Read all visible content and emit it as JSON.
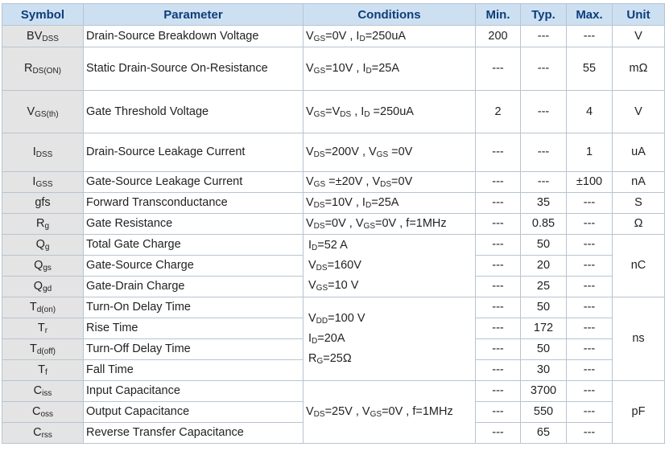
{
  "headers": [
    "Symbol",
    "Parameter",
    "Conditions",
    "Min.",
    "Typ.",
    "Max.",
    "Unit"
  ],
  "rows": [
    {
      "sym": {
        "m": "BV",
        "s": "DSS"
      },
      "param": "Drain-Source Breakdown Voltage",
      "min": "200",
      "typ": "---",
      "max": "---"
    },
    {
      "sym": {
        "m": "R",
        "s": "DS(ON)"
      },
      "param": "Static Drain-Source On-Resistance",
      "min": "---",
      "typ": "---",
      "max": "55"
    },
    {
      "sym": {
        "m": "V",
        "s": "GS(th)"
      },
      "param": "Gate Threshold Voltage",
      "min": "2",
      "typ": "---",
      "max": "4"
    },
    {
      "sym": {
        "m": "I",
        "s": "DSS"
      },
      "param": "Drain-Source Leakage Current",
      "min": "---",
      "typ": "---",
      "max": "1"
    },
    {
      "sym": {
        "m": "I",
        "s": "GSS"
      },
      "param": "Gate-Source Leakage Current",
      "min": "---",
      "typ": "---",
      "max": "±100"
    },
    {
      "sym": {
        "m": "gfs",
        "s": ""
      },
      "param": "Forward Transconductance",
      "min": "---",
      "typ": "35",
      "max": "---"
    },
    {
      "sym": {
        "m": "R",
        "s": "g"
      },
      "param": "Gate Resistance",
      "min": "---",
      "typ": "0.85",
      "max": "---"
    },
    {
      "sym": {
        "m": "Q",
        "s": "g"
      },
      "param": "Total Gate Charge",
      "min": "---",
      "typ": "50",
      "max": "---"
    },
    {
      "sym": {
        "m": "Q",
        "s": "gs"
      },
      "param": "Gate-Source Charge",
      "min": "---",
      "typ": "20",
      "max": "---"
    },
    {
      "sym": {
        "m": "Q",
        "s": "gd"
      },
      "param": "Gate-Drain Charge",
      "min": "---",
      "typ": "25",
      "max": "---"
    },
    {
      "sym": {
        "m": "T",
        "s": "d(on)"
      },
      "param": "Turn-On Delay Time",
      "min": "---",
      "typ": "50",
      "max": "---"
    },
    {
      "sym": {
        "m": "T",
        "s": "r"
      },
      "param": "Rise Time",
      "min": "---",
      "typ": "172",
      "max": "---"
    },
    {
      "sym": {
        "m": "T",
        "s": "d(off)"
      },
      "param": "Turn-Off Delay Time",
      "min": "---",
      "typ": "50",
      "max": "---"
    },
    {
      "sym": {
        "m": "T",
        "s": "f"
      },
      "param": "Fall Time",
      "min": "---",
      "typ": "30",
      "max": "---"
    },
    {
      "sym": {
        "m": "C",
        "s": "iss"
      },
      "param": "Input Capacitance",
      "min": "---",
      "typ": "3700",
      "max": "---"
    },
    {
      "sym": {
        "m": "C",
        "s": "oss"
      },
      "param": "Output Capacitance",
      "min": "---",
      "typ": "550",
      "max": "---"
    },
    {
      "sym": {
        "m": "C",
        "s": "rss"
      },
      "param": "Reverse Transfer Capacitance",
      "min": "---",
      "typ": "65",
      "max": "---"
    }
  ],
  "conditions": {
    "bvdss": [
      {
        "t": "V"
      },
      {
        "s": "GS"
      },
      {
        "t": "=0V , I"
      },
      {
        "s": "D"
      },
      {
        "t": "=250uA"
      }
    ],
    "rdson": [
      {
        "t": "V"
      },
      {
        "s": "GS"
      },
      {
        "t": "=10V , I"
      },
      {
        "s": "D"
      },
      {
        "t": "=25A"
      }
    ],
    "vgsth": [
      {
        "t": "V"
      },
      {
        "s": "GS"
      },
      {
        "t": "=V"
      },
      {
        "s": "DS"
      },
      {
        "t": " , I"
      },
      {
        "s": "D"
      },
      {
        "t": " =250uA"
      }
    ],
    "idss": [
      {
        "t": "V"
      },
      {
        "s": "DS"
      },
      {
        "t": "=200V , V"
      },
      {
        "s": "GS"
      },
      {
        "t": " =0V"
      }
    ],
    "igss": [
      {
        "t": "V"
      },
      {
        "s": "GS"
      },
      {
        "t": " =±20V , V"
      },
      {
        "s": "DS"
      },
      {
        "t": "=0V"
      }
    ],
    "gfs": [
      {
        "t": "V"
      },
      {
        "s": "DS"
      },
      {
        "t": "=10V , I"
      },
      {
        "s": "D"
      },
      {
        "t": "=25A"
      }
    ],
    "rg": [
      {
        "t": "V"
      },
      {
        "s": "DS"
      },
      {
        "t": "=0V , V"
      },
      {
        "s": "GS"
      },
      {
        "t": "=0V , f=1MHz"
      }
    ],
    "charge": [
      [
        {
          "t": "I"
        },
        {
          "s": "D"
        },
        {
          "t": "=52 A"
        }
      ],
      [
        {
          "t": "V"
        },
        {
          "s": "DS"
        },
        {
          "t": "=160V"
        }
      ],
      [
        {
          "t": "V"
        },
        {
          "s": "GS"
        },
        {
          "t": "=10 V"
        }
      ]
    ],
    "switching": [
      [
        {
          "t": "V"
        },
        {
          "s": "DD"
        },
        {
          "t": "=100 V"
        }
      ],
      [
        {
          "t": "I"
        },
        {
          "s": "D"
        },
        {
          "t": "=20A"
        }
      ],
      [
        {
          "t": "R"
        },
        {
          "s": "G"
        },
        {
          "t": "=25Ω"
        }
      ]
    ],
    "cap": [
      {
        "t": "V"
      },
      {
        "s": "DS"
      },
      {
        "t": "=25V , V"
      },
      {
        "s": "GS"
      },
      {
        "t": "=0V , f=1MHz"
      }
    ]
  },
  "units": {
    "bvdss": "V",
    "rdson": "mΩ",
    "vgsth": "V",
    "idss": "uA",
    "igss": "nA",
    "gfs": "S",
    "rg": "Ω",
    "charge": "nC",
    "switching": "ns",
    "cap": "pF"
  }
}
